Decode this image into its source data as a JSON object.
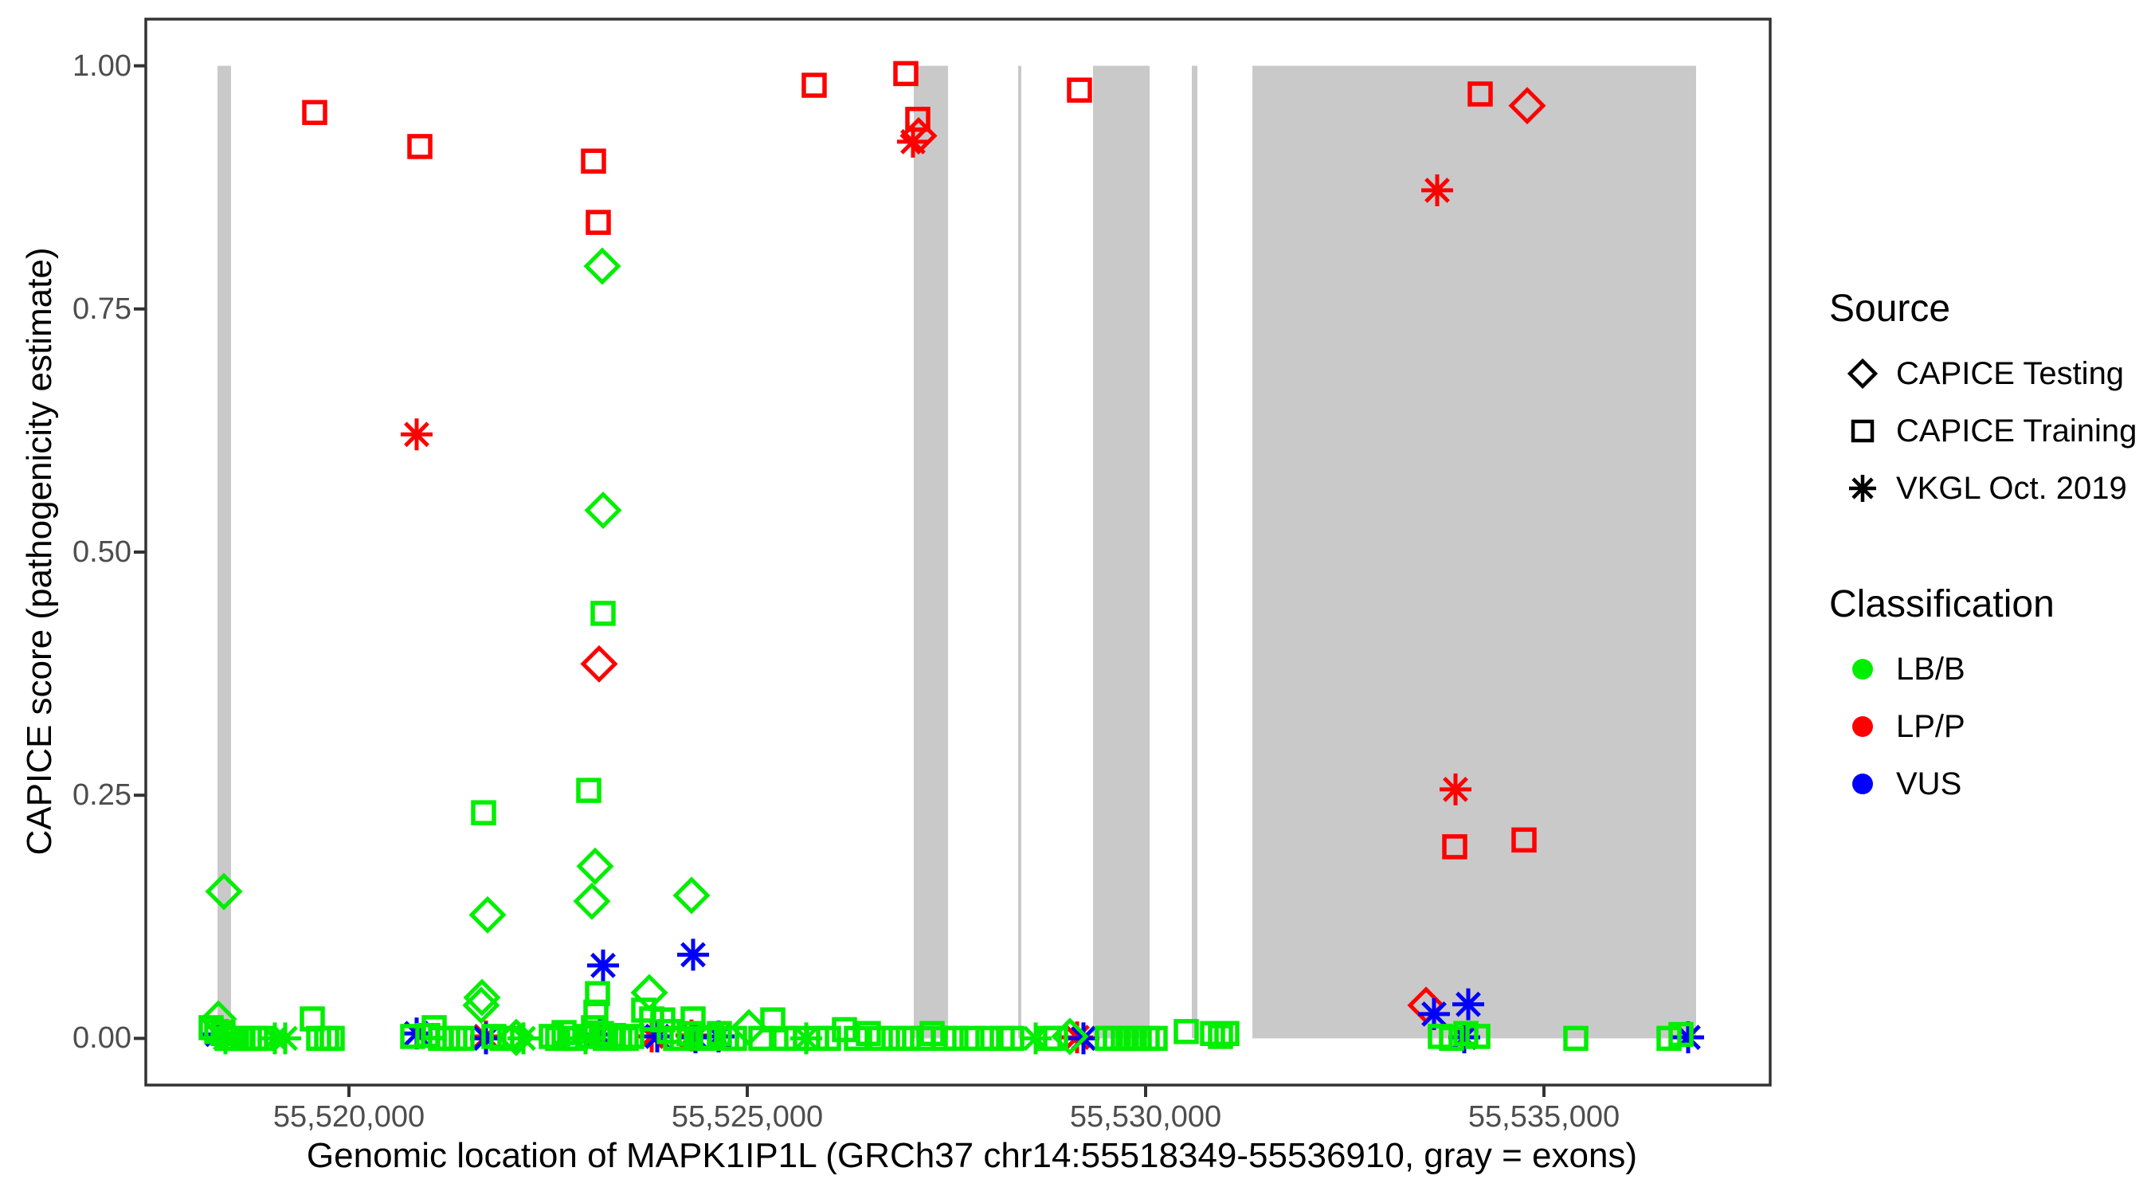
{
  "chart_data": {
    "type": "scatter",
    "title": "",
    "xlabel": "Genomic location of MAPK1IP1L (GRCh37 chr14:55518349-55536910, gray = exons)",
    "ylabel": "CAPICE score (pathogenicity estimate)",
    "xlim": [
      55517450,
      55537840
    ],
    "ylim": [
      -0.048,
      1.048
    ],
    "grid": "off",
    "legend_position": "right",
    "x_ticks": [
      {
        "v": 55520000,
        "label": "55,520,000"
      },
      {
        "v": 55525000,
        "label": "55,525,000"
      },
      {
        "v": 55530000,
        "label": "55,530,000"
      },
      {
        "v": 55535000,
        "label": "55,535,000"
      }
    ],
    "y_ticks": [
      {
        "v": 1.0,
        "label": "1.00"
      },
      {
        "v": 0.75,
        "label": "0.75"
      },
      {
        "v": 0.5,
        "label": "0.50"
      },
      {
        "v": 0.25,
        "label": "0.25"
      },
      {
        "v": 0.0,
        "label": "0.00"
      }
    ],
    "exon_note": "gray = exons",
    "exons_bp": [
      [
        55518350,
        55518520
      ],
      [
        55527090,
        55527520
      ],
      [
        55528400,
        55528440
      ],
      [
        55529340,
        55530050
      ],
      [
        55530580,
        55530650
      ],
      [
        55531340,
        55536910
      ]
    ],
    "colors": {
      "LB/B": "#00EE00",
      "LP/P": "#FF0000",
      "VUS": "#0000FF",
      "exon": "#C9C9C9",
      "axis_text": "#4d4d4d",
      "panel_border": "#333333"
    },
    "shape_by_source": {
      "CAPICE Testing": "diamond",
      "CAPICE Training": "square",
      "VKGL Oct. 2019": "asterisk"
    },
    "points_format": [
      "genomic_position",
      "capice_score",
      "source",
      "classification"
    ],
    "points": [
      [
        55519570,
        0.952,
        "CAPICE Training",
        "LP/P"
      ],
      [
        55520890,
        0.917,
        "CAPICE Training",
        "LP/P"
      ],
      [
        55520850,
        0.621,
        "VKGL Oct. 2019",
        "LP/P"
      ],
      [
        55523070,
        0.902,
        "CAPICE Training",
        "LP/P"
      ],
      [
        55523130,
        0.839,
        "CAPICE Training",
        "LP/P"
      ],
      [
        55523140,
        0.385,
        "CAPICE Testing",
        "LP/P"
      ],
      [
        55525840,
        0.98,
        "CAPICE Training",
        "LP/P"
      ],
      [
        55526990,
        0.992,
        "CAPICE Training",
        "LP/P"
      ],
      [
        55527140,
        0.945,
        "CAPICE Training",
        "LP/P"
      ],
      [
        55527150,
        0.928,
        "CAPICE Testing",
        "LP/P"
      ],
      [
        55527080,
        0.922,
        "VKGL Oct. 2019",
        "LP/P"
      ],
      [
        55529170,
        0.975,
        "CAPICE Training",
        "LP/P"
      ],
      [
        55534200,
        0.971,
        "CAPICE Training",
        "LP/P"
      ],
      [
        55534790,
        0.959,
        "CAPICE Testing",
        "LP/P"
      ],
      [
        55533660,
        0.872,
        "VKGL Oct. 2019",
        "LP/P"
      ],
      [
        55533890,
        0.256,
        "VKGL Oct. 2019",
        "LP/P"
      ],
      [
        55533880,
        0.197,
        "CAPICE Training",
        "LP/P"
      ],
      [
        55534750,
        0.204,
        "CAPICE Training",
        "LP/P"
      ],
      [
        55533520,
        0.034,
        "CAPICE Testing",
        "LP/P"
      ],
      [
        55521720,
        0.002,
        "VKGL Oct. 2019",
        "LP/P"
      ],
      [
        55523800,
        0.002,
        "VKGL Oct. 2019",
        "LP/P"
      ],
      [
        55524300,
        0.003,
        "VKGL Oct. 2019",
        "LP/P"
      ],
      [
        55529140,
        0.001,
        "VKGL Oct. 2019",
        "LP/P"
      ],
      [
        55518350,
        0.004,
        "VKGL Oct. 2019",
        "VUS"
      ],
      [
        55520850,
        0.005,
        "VKGL Oct. 2019",
        "VUS"
      ],
      [
        55521720,
        0.0,
        "VKGL Oct. 2019",
        "VUS"
      ],
      [
        55523150,
        0.004,
        "VKGL Oct. 2019",
        "VUS"
      ],
      [
        55523190,
        0.075,
        "VKGL Oct. 2019",
        "VUS"
      ],
      [
        55523870,
        0.002,
        "VKGL Oct. 2019",
        "VUS"
      ],
      [
        55524320,
        0.086,
        "VKGL Oct. 2019",
        "VUS"
      ],
      [
        55524350,
        0.001,
        "VKGL Oct. 2019",
        "VUS"
      ],
      [
        55524640,
        0.002,
        "VKGL Oct. 2019",
        "VUS"
      ],
      [
        55529220,
        0.0,
        "VKGL Oct. 2019",
        "VUS"
      ],
      [
        55533620,
        0.025,
        "VKGL Oct. 2019",
        "VUS"
      ],
      [
        55534050,
        0.035,
        "VKGL Oct. 2019",
        "VUS"
      ],
      [
        55534000,
        0.001,
        "VKGL Oct. 2019",
        "VUS"
      ],
      [
        55536810,
        0.001,
        "VKGL Oct. 2019",
        "VUS"
      ],
      [
        55518430,
        0.151,
        "CAPICE Testing",
        "LB/B"
      ],
      [
        55518360,
        0.02,
        "CAPICE Testing",
        "LB/B"
      ],
      [
        55518270,
        0.011,
        "CAPICE Training",
        "LB/B"
      ],
      [
        55518340,
        0.007,
        "CAPICE Training",
        "LB/B"
      ],
      [
        55518420,
        0.005,
        "CAPICE Training",
        "LB/B"
      ],
      [
        55518470,
        0.0,
        "CAPICE Training",
        "LB/B"
      ],
      [
        55518530,
        0.0,
        "CAPICE Training",
        "LB/B"
      ],
      [
        55518450,
        0.0,
        "VKGL Oct. 2019",
        "LB/B"
      ],
      [
        55518590,
        0.0,
        "CAPICE Training",
        "LB/B"
      ],
      [
        55518670,
        0.0,
        "CAPICE Training",
        "LB/B"
      ],
      [
        55518750,
        0.0,
        "CAPICE Training",
        "LB/B"
      ],
      [
        55518830,
        0.0,
        "CAPICE Training",
        "LB/B"
      ],
      [
        55518910,
        0.0,
        "CAPICE Training",
        "LB/B"
      ],
      [
        55519070,
        0.0,
        "VKGL Oct. 2019",
        "LB/B"
      ],
      [
        55519200,
        0.0,
        "VKGL Oct. 2019",
        "LB/B"
      ],
      [
        55519540,
        0.02,
        "CAPICE Training",
        "LB/B"
      ],
      [
        55519620,
        0.0,
        "CAPICE Training",
        "LB/B"
      ],
      [
        55519720,
        0.0,
        "CAPICE Training",
        "LB/B"
      ],
      [
        55519790,
        0.0,
        "CAPICE Training",
        "LB/B"
      ],
      [
        55520800,
        0.002,
        "CAPICE Training",
        "LB/B"
      ],
      [
        55520990,
        0.003,
        "CAPICE Training",
        "LB/B"
      ],
      [
        55521070,
        0.011,
        "CAPICE Training",
        "LB/B"
      ],
      [
        55521150,
        0.0,
        "CAPICE Training",
        "LB/B"
      ],
      [
        55521240,
        0.0,
        "CAPICE Training",
        "LB/B"
      ],
      [
        55521330,
        0.0,
        "CAPICE Training",
        "LB/B"
      ],
      [
        55521420,
        0.0,
        "CAPICE Training",
        "LB/B"
      ],
      [
        55521660,
        0.034,
        "CAPICE Testing",
        "LB/B"
      ],
      [
        55521690,
        0.232,
        "CAPICE Training",
        "LB/B"
      ],
      [
        55521740,
        0.127,
        "CAPICE Testing",
        "LB/B"
      ],
      [
        55521670,
        0.042,
        "CAPICE Testing",
        "LB/B"
      ],
      [
        55521820,
        0.002,
        "CAPICE Training",
        "LB/B"
      ],
      [
        55521920,
        0.0,
        "CAPICE Training",
        "LB/B"
      ],
      [
        55522020,
        0.0,
        "CAPICE Training",
        "LB/B"
      ],
      [
        55522100,
        0.001,
        "CAPICE Testing",
        "LB/B"
      ],
      [
        55522190,
        0.0,
        "VKGL Oct. 2019",
        "LB/B"
      ],
      [
        55522540,
        0.002,
        "CAPICE Training",
        "LB/B"
      ],
      [
        55522620,
        0.0,
        "CAPICE Training",
        "LB/B"
      ],
      [
        55522700,
        0.006,
        "CAPICE Training",
        "LB/B"
      ],
      [
        55522770,
        0.0,
        "CAPICE Training",
        "LB/B"
      ],
      [
        55522840,
        0.0,
        "CAPICE Training",
        "LB/B"
      ],
      [
        55523120,
        0.046,
        "CAPICE Training",
        "LB/B"
      ],
      [
        55523100,
        0.027,
        "CAPICE Training",
        "LB/B"
      ],
      [
        55523070,
        0.011,
        "CAPICE Training",
        "LB/B"
      ],
      [
        55523000,
        0.002,
        "CAPICE Training",
        "LB/B"
      ],
      [
        55523170,
        0.005,
        "CAPICE Training",
        "LB/B"
      ],
      [
        55523220,
        0.0,
        "CAPICE Training",
        "LB/B"
      ],
      [
        55522970,
        0.0,
        "VKGL Oct. 2019",
        "LB/B"
      ],
      [
        55523190,
        0.437,
        "CAPICE Training",
        "LB/B"
      ],
      [
        55523190,
        0.543,
        "CAPICE Testing",
        "LB/B"
      ],
      [
        55523180,
        0.794,
        "CAPICE Testing",
        "LB/B"
      ],
      [
        55523010,
        0.255,
        "CAPICE Training",
        "LB/B"
      ],
      [
        55523090,
        0.177,
        "CAPICE Testing",
        "LB/B"
      ],
      [
        55523050,
        0.141,
        "CAPICE Testing",
        "LB/B"
      ],
      [
        55523320,
        0.003,
        "CAPICE Training",
        "LB/B"
      ],
      [
        55523400,
        0.0,
        "CAPICE Training",
        "LB/B"
      ],
      [
        55523480,
        0.0,
        "CAPICE Training",
        "LB/B"
      ],
      [
        55523550,
        0.002,
        "CAPICE Training",
        "LB/B"
      ],
      [
        55523770,
        0.047,
        "CAPICE Testing",
        "LB/B"
      ],
      [
        55523700,
        0.029,
        "CAPICE Training",
        "LB/B"
      ],
      [
        55523800,
        0.02,
        "CAPICE Training",
        "LB/B"
      ],
      [
        55523940,
        0.019,
        "CAPICE Training",
        "LB/B"
      ],
      [
        55524020,
        0.007,
        "CAPICE Training",
        "LB/B"
      ],
      [
        55524100,
        0.0,
        "CAPICE Training",
        "LB/B"
      ],
      [
        55524180,
        0.0,
        "CAPICE Training",
        "LB/B"
      ],
      [
        55524320,
        0.02,
        "CAPICE Training",
        "LB/B"
      ],
      [
        55524270,
        0.005,
        "CAPICE Training",
        "LB/B"
      ],
      [
        55524400,
        0.0,
        "CAPICE Training",
        "LB/B"
      ],
      [
        55524500,
        0.0,
        "CAPICE Training",
        "LB/B"
      ],
      [
        55524300,
        0.147,
        "CAPICE Testing",
        "LB/B"
      ],
      [
        55524550,
        0.001,
        "CAPICE Training",
        "LB/B"
      ],
      [
        55524650,
        0.005,
        "CAPICE Training",
        "LB/B"
      ],
      [
        55524740,
        0.0,
        "CAPICE Training",
        "LB/B"
      ],
      [
        55524840,
        0.0,
        "CAPICE Training",
        "LB/B"
      ],
      [
        55525020,
        0.011,
        "CAPICE Testing",
        "LB/B"
      ],
      [
        55525170,
        0.0,
        "CAPICE Training",
        "LB/B"
      ],
      [
        55525320,
        0.019,
        "CAPICE Training",
        "LB/B"
      ],
      [
        55525470,
        0.0,
        "CAPICE Training",
        "LB/B"
      ],
      [
        55525620,
        0.0,
        "CAPICE Training",
        "LB/B"
      ],
      [
        55525740,
        0.0,
        "VKGL Oct. 2019",
        "LB/B"
      ],
      [
        55525870,
        0.0,
        "CAPICE Training",
        "LB/B"
      ],
      [
        55526020,
        0.0,
        "CAPICE Training",
        "LB/B"
      ],
      [
        55526220,
        0.009,
        "CAPICE Training",
        "LB/B"
      ],
      [
        55526370,
        0.0,
        "CAPICE Training",
        "LB/B"
      ],
      [
        55526520,
        0.005,
        "CAPICE Training",
        "LB/B"
      ],
      [
        55526670,
        0.0,
        "CAPICE Training",
        "LB/B"
      ],
      [
        55526840,
        0.0,
        "CAPICE Training",
        "LB/B"
      ],
      [
        55527020,
        0.0,
        "CAPICE Training",
        "LB/B"
      ],
      [
        55527200,
        0.0,
        "CAPICE Training",
        "LB/B"
      ],
      [
        55527320,
        0.005,
        "CAPICE Training",
        "LB/B"
      ],
      [
        55527470,
        0.0,
        "CAPICE Training",
        "LB/B"
      ],
      [
        55527620,
        0.0,
        "CAPICE Training",
        "LB/B"
      ],
      [
        55527820,
        0.0,
        "CAPICE Training",
        "LB/B"
      ],
      [
        55528020,
        0.0,
        "CAPICE Training",
        "LB/B"
      ],
      [
        55528200,
        0.0,
        "CAPICE Training",
        "LB/B"
      ],
      [
        55528320,
        0.0,
        "CAPICE Training",
        "LB/B"
      ],
      [
        55528620,
        0.0,
        "VKGL Oct. 2019",
        "LB/B"
      ],
      [
        55528790,
        0.0,
        "CAPICE Training",
        "LB/B"
      ],
      [
        55528870,
        0.0,
        "CAPICE Training",
        "LB/B"
      ],
      [
        55529050,
        0.002,
        "CAPICE Testing",
        "LB/B"
      ],
      [
        55529520,
        0.0,
        "CAPICE Training",
        "LB/B"
      ],
      [
        55529620,
        0.0,
        "CAPICE Training",
        "LB/B"
      ],
      [
        55529720,
        0.0,
        "CAPICE Training",
        "LB/B"
      ],
      [
        55529820,
        0.0,
        "CAPICE Training",
        "LB/B"
      ],
      [
        55529920,
        0.0,
        "CAPICE Training",
        "LB/B"
      ],
      [
        55530020,
        0.0,
        "CAPICE Training",
        "LB/B"
      ],
      [
        55530120,
        0.0,
        "CAPICE Training",
        "LB/B"
      ],
      [
        55530510,
        0.007,
        "CAPICE Training",
        "LB/B"
      ],
      [
        55530840,
        0.005,
        "CAPICE Training",
        "LB/B"
      ],
      [
        55530940,
        0.002,
        "CAPICE Training",
        "LB/B"
      ],
      [
        55531020,
        0.005,
        "CAPICE Training",
        "LB/B"
      ],
      [
        55533700,
        0.002,
        "CAPICE Training",
        "LB/B"
      ],
      [
        55533840,
        0.0,
        "CAPICE Training",
        "LB/B"
      ],
      [
        55534020,
        0.005,
        "CAPICE Training",
        "LB/B"
      ],
      [
        55534170,
        0.002,
        "CAPICE Training",
        "LB/B"
      ],
      [
        55535400,
        0.0,
        "CAPICE Training",
        "LB/B"
      ],
      [
        55536570,
        0.0,
        "CAPICE Training",
        "LB/B"
      ],
      [
        55536720,
        0.004,
        "CAPICE Training",
        "LB/B"
      ]
    ]
  },
  "legend": {
    "source_title": "Source",
    "source_items": [
      {
        "label": "CAPICE Testing",
        "shape": "diamond"
      },
      {
        "label": "CAPICE Training",
        "shape": "square"
      },
      {
        "label": "VKGL Oct. 2019",
        "shape": "asterisk"
      }
    ],
    "classification_title": "Classification",
    "classification_items": [
      {
        "label": "LB/B",
        "color": "#00EE00"
      },
      {
        "label": "LP/P",
        "color": "#FF0000"
      },
      {
        "label": "VUS",
        "color": "#0000FF"
      }
    ]
  }
}
